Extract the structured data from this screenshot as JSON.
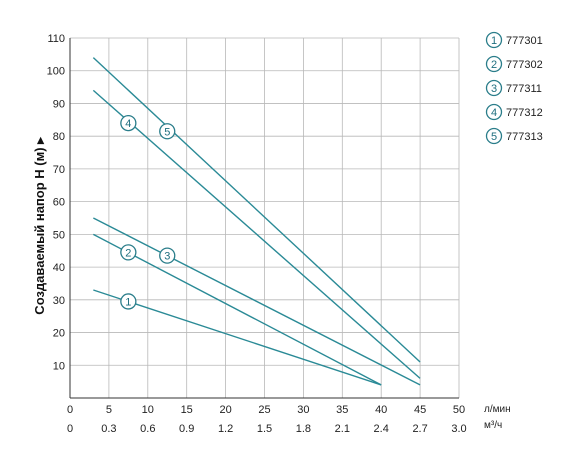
{
  "chart_data": {
    "type": "line",
    "ylabel": "Создаваемый напор H (м) ▸",
    "x_unit": "л/мин",
    "x2_unit": "м³/ч",
    "xlim": [
      0,
      50
    ],
    "ylim": [
      0,
      110
    ],
    "x_ticks": [
      "0",
      "5",
      "10",
      "15",
      "20",
      "25",
      "30",
      "35",
      "40",
      "45",
      "50"
    ],
    "x2_ticks": [
      "0",
      "0.3",
      "0.6",
      "0.9",
      "1.2",
      "1.5",
      "1.8",
      "2.1",
      "2.4",
      "2.7",
      "3.0"
    ],
    "y_ticks": [
      "10",
      "20",
      "30",
      "40",
      "50",
      "60",
      "70",
      "80",
      "90",
      "100",
      "110"
    ],
    "grid": true,
    "legend_position": "right",
    "line_color": "#2a8a96",
    "series": [
      {
        "marker": "1",
        "name": "777301",
        "x": [
          3,
          40
        ],
        "y": [
          33,
          4
        ],
        "label_at": [
          7.5,
          29.5
        ]
      },
      {
        "marker": "2",
        "name": "777302",
        "x": [
          3,
          40
        ],
        "y": [
          50,
          4
        ],
        "label_at": [
          7.5,
          44.5
        ]
      },
      {
        "marker": "3",
        "name": "777311",
        "x": [
          3,
          45
        ],
        "y": [
          55,
          4
        ],
        "label_at": [
          12.5,
          43.5
        ]
      },
      {
        "marker": "4",
        "name": "777312",
        "x": [
          3,
          45
        ],
        "y": [
          94,
          6
        ],
        "label_at": [
          7.5,
          84
        ]
      },
      {
        "marker": "5",
        "name": "777313",
        "x": [
          3,
          45
        ],
        "y": [
          104,
          11
        ],
        "label_at": [
          12.5,
          81.5
        ]
      }
    ]
  }
}
